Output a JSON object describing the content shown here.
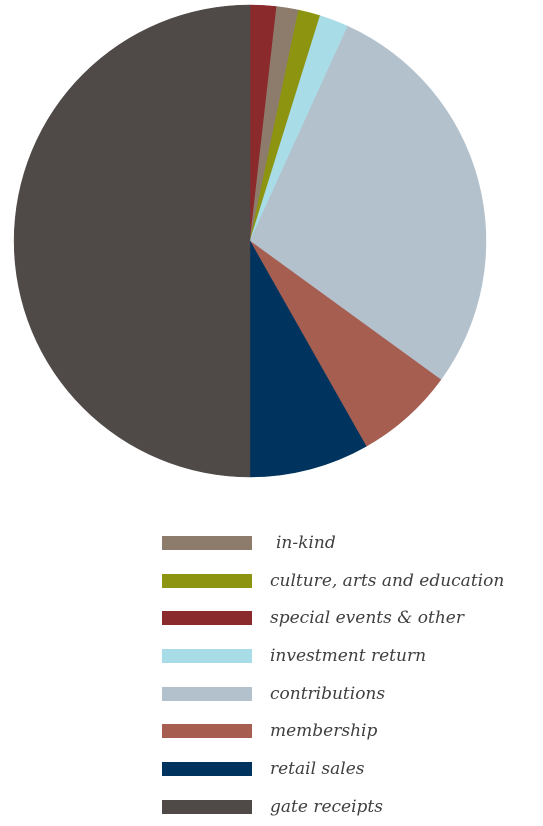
{
  "chart_data": {
    "type": "pie",
    "title": "",
    "start_angle_deg": -90,
    "direction": "clockwise",
    "slices": [
      {
        "label": "special events & other",
        "value": 1.8,
        "color": "#8b2a2d"
      },
      {
        "label": "in-kind",
        "value": 1.5,
        "color": "#8d7c6c"
      },
      {
        "label": "culture, arts and education",
        "value": 1.5,
        "color": "#8c9410"
      },
      {
        "label": "investment return",
        "value": 2.0,
        "color": "#a8dce6"
      },
      {
        "label": "contributions",
        "value": 28.2,
        "color": "#b3c1cd"
      },
      {
        "label": "membership",
        "value": 6.8,
        "color": "#a65e51"
      },
      {
        "label": "retail sales",
        "value": 8.2,
        "color": "#00345e"
      },
      {
        "label": "gate receipts",
        "value": 50.0,
        "color": "#4f4948"
      }
    ],
    "legend": {
      "placement": "bottom",
      "entries": [
        {
          "label": "in-kind",
          "color": "#8d7c6c"
        },
        {
          "label": "culture, arts and education",
          "color": "#8c9410"
        },
        {
          "label": "special events & other",
          "color": "#8b2a2d"
        },
        {
          "label": "investment return",
          "color": "#a8dce6"
        },
        {
          "label": "contributions",
          "color": "#b3c1cd"
        },
        {
          "label": "membership",
          "color": "#a65e51"
        },
        {
          "label": "retail sales",
          "color": "#00345e"
        },
        {
          "label": "gate receipts",
          "color": "#4f4948"
        }
      ]
    }
  }
}
